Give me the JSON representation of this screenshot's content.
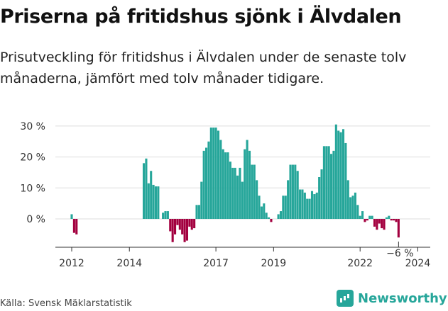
{
  "header": {
    "title": "Priserna på fritidshus sjönk i Älvdalen",
    "subtitle": "Prisutveckling för fritidshus i Älvdalen under de senaste tolv månaderna, jämfört med tolv månader tidigare."
  },
  "footer": {
    "source": "Källa: Svensk Mäklarstatistik",
    "brand": "Newsworthy",
    "brand_icon": "bar-chart-icon"
  },
  "colors": {
    "positive": "#26a69a",
    "negative": "#a3003f",
    "axis": "#333333",
    "grid": "#dddddd"
  },
  "chart_data": {
    "type": "bar",
    "title": "Priserna på fritidshus sjönk i Älvdalen",
    "xlabel": "",
    "ylabel": "",
    "ylim": [
      -8,
      32
    ],
    "yticks": [
      0,
      10,
      20,
      30
    ],
    "ytick_labels": [
      "0 %",
      "10 %",
      "20 %",
      "30 %"
    ],
    "xticks": [
      "2012",
      "2014",
      "2017",
      "2019",
      "2022",
      "2024"
    ],
    "x_start": "2012-01",
    "grid": true,
    "last_value_label": "−6 %",
    "values": [
      1.5,
      -4.5,
      -5,
      0,
      0,
      0,
      0,
      0,
      0,
      0,
      0,
      0,
      0,
      0,
      0,
      0,
      0,
      0,
      0,
      0,
      0,
      0,
      0,
      0,
      0,
      0,
      0,
      0,
      0,
      0,
      18,
      19.5,
      11.5,
      15.5,
      11,
      10.5,
      10.5,
      0,
      2,
      2.5,
      2.5,
      -4,
      -7.5,
      -5,
      -2,
      -3.5,
      -5,
      -7.5,
      -7,
      -2.5,
      -3.5,
      -3,
      4.5,
      4.5,
      12,
      22,
      23,
      25,
      29.5,
      29.5,
      29.5,
      28.5,
      25.5,
      22.5,
      21.5,
      21.5,
      18.5,
      16.5,
      16.5,
      14,
      16.5,
      12,
      22.5,
      25.5,
      22,
      17.5,
      17.5,
      12.5,
      7.5,
      4,
      5,
      2,
      0.5,
      -1,
      0,
      0,
      1.5,
      2.5,
      7.5,
      7.5,
      12.5,
      17.5,
      17.5,
      17.5,
      15.5,
      9.5,
      9.5,
      8.5,
      6.5,
      6.5,
      9,
      8,
      8.5,
      13.5,
      16,
      23.5,
      23.5,
      23.5,
      21,
      22,
      30.5,
      28.5,
      28,
      29,
      24.5,
      12.5,
      7,
      7.5,
      8.5,
      4.5,
      1,
      2.5,
      -1,
      -0.5,
      1,
      1,
      -2.5,
      -3.5,
      -1.5,
      -3,
      -3.5,
      0.5,
      1,
      -0.5,
      -0.5,
      -1,
      -6
    ]
  }
}
